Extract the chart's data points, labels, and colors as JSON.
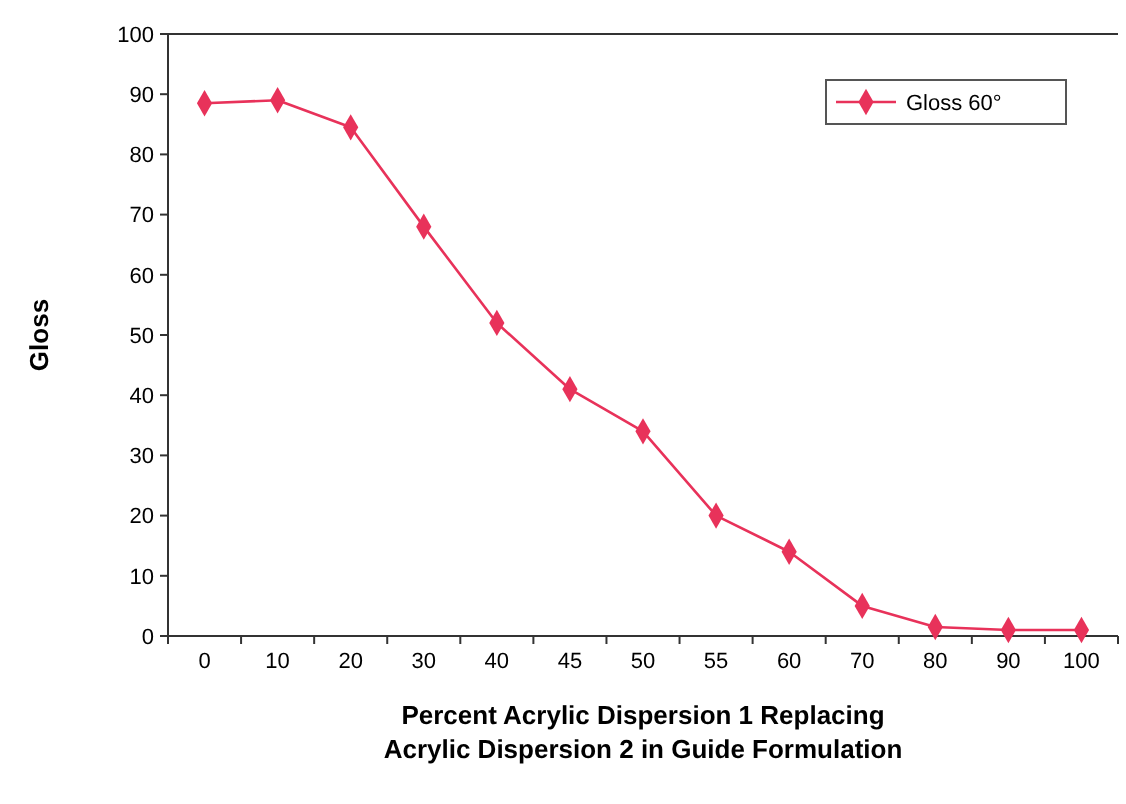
{
  "chart_data": {
    "type": "line",
    "xlabel": "Percent Acrylic Dispersion 1 Replacing\nAcrylic Dispersion 2 in Guide Formulation",
    "ylabel": "Gloss",
    "categories": [
      "0",
      "10",
      "20",
      "30",
      "40",
      "45",
      "50",
      "55",
      "60",
      "70",
      "80",
      "90",
      "100"
    ],
    "series": [
      {
        "name": "Gloss 60°",
        "color": "#e8325a",
        "values": [
          88.5,
          89,
          84.5,
          68,
          52,
          41,
          34,
          20,
          14,
          5,
          1.5,
          1,
          1
        ]
      }
    ],
    "ylim": [
      0,
      100
    ],
    "yticks": [
      0,
      10,
      20,
      30,
      40,
      50,
      60,
      70,
      80,
      90,
      100
    ],
    "grid": false,
    "legend": "top right",
    "marker": "diamond",
    "line_style": "solid"
  }
}
